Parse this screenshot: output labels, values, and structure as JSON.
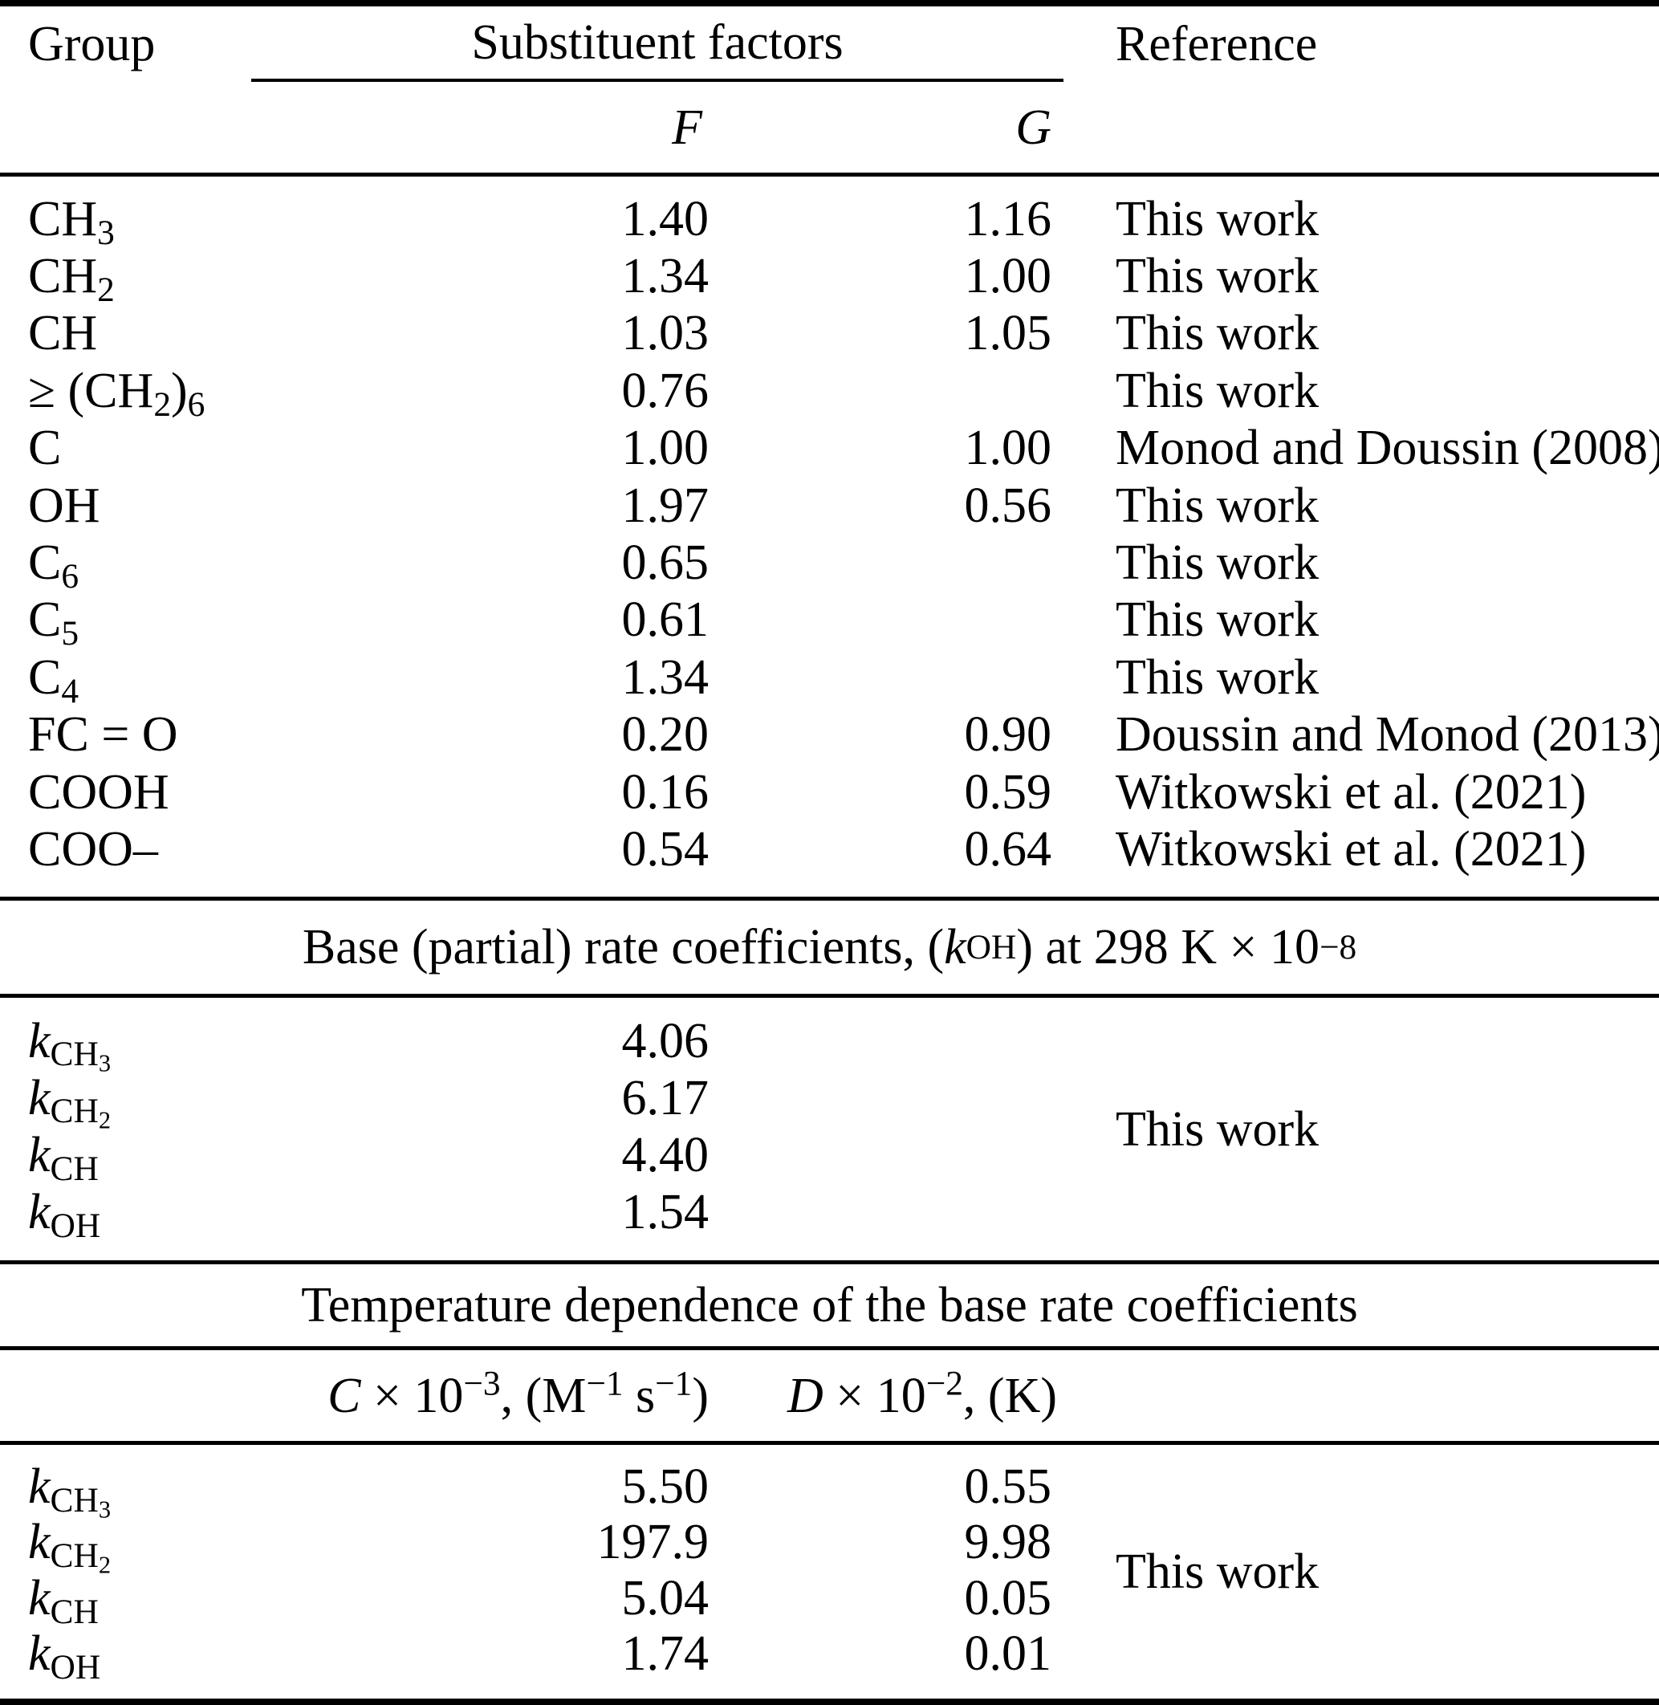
{
  "colors": {
    "text": "#000000",
    "background": "#ffffff",
    "rule": "#000000"
  },
  "table": {
    "section1": {
      "headers": {
        "group": "Group",
        "substituent_factors": "Substituent factors",
        "reference": "Reference",
        "f": "*F*",
        "g": "*G*"
      },
      "rows": [
        {
          "group": "CH_{3}",
          "f": "1.40",
          "g": "1.16",
          "ref": "This work"
        },
        {
          "group": "CH_{2}",
          "f": "1.34",
          "g": "1.00",
          "ref": "This work"
        },
        {
          "group": "CH",
          "f": "1.03",
          "g": "1.05",
          "ref": "This work"
        },
        {
          "group": "≥ (CH_{2})_{6}",
          "f": "0.76",
          "g": "",
          "ref": "This work"
        },
        {
          "group": "C",
          "f": "1.00",
          "g": "1.00",
          "ref": "Monod and Doussin (2008)"
        },
        {
          "group": "OH",
          "f": "1.97",
          "g": "0.56",
          "ref": "This work"
        },
        {
          "group": "C_{6}",
          "f": "0.65",
          "g": "",
          "ref": "This work"
        },
        {
          "group": "C_{5}",
          "f": "0.61",
          "g": "",
          "ref": "This work"
        },
        {
          "group": "C_{4}",
          "f": "1.34",
          "g": "",
          "ref": "This work"
        },
        {
          "group": "FC = O",
          "f": "0.20",
          "g": "0.90",
          "ref": "Doussin and Monod (2013)"
        },
        {
          "group": "COOH",
          "f": "0.16",
          "g": "0.59",
          "ref": "Witkowski et al. (2021)"
        },
        {
          "group": "COO–",
          "f": "0.54",
          "g": "0.64",
          "ref": "Witkowski et al. (2021)"
        }
      ]
    },
    "section2": {
      "title": "Base (partial) rate coefficients, (*k*_{OH}) at 298 K × 10^{−8}",
      "rows": [
        {
          "label": "*k*_{CH_{3}}",
          "value": "4.06"
        },
        {
          "label": "*k*_{CH_{2}}",
          "value": "6.17"
        },
        {
          "label": "*k*_{CH}",
          "value": "4.40"
        },
        {
          "label": "*k*_{OH}",
          "value": "1.54"
        }
      ],
      "reference": "This work"
    },
    "section3": {
      "title": "Temperature dependence of the base rate coefficients",
      "headers": {
        "c": "*C* × 10^{−3}, (M^{−1} s^{−1})",
        "d": "*D* × 10^{−2}, (K)"
      },
      "rows": [
        {
          "label": "*k*_{CH_{3}}",
          "c": "5.50",
          "d": "0.55"
        },
        {
          "label": "*k*_{CH_{2}}",
          "c": "197.9",
          "d": "9.98"
        },
        {
          "label": "*k*_{CH}",
          "c": "5.04",
          "d": "0.05"
        },
        {
          "label": "*k*_{OH}",
          "c": "1.74",
          "d": "0.01"
        }
      ],
      "reference": "This work"
    }
  }
}
